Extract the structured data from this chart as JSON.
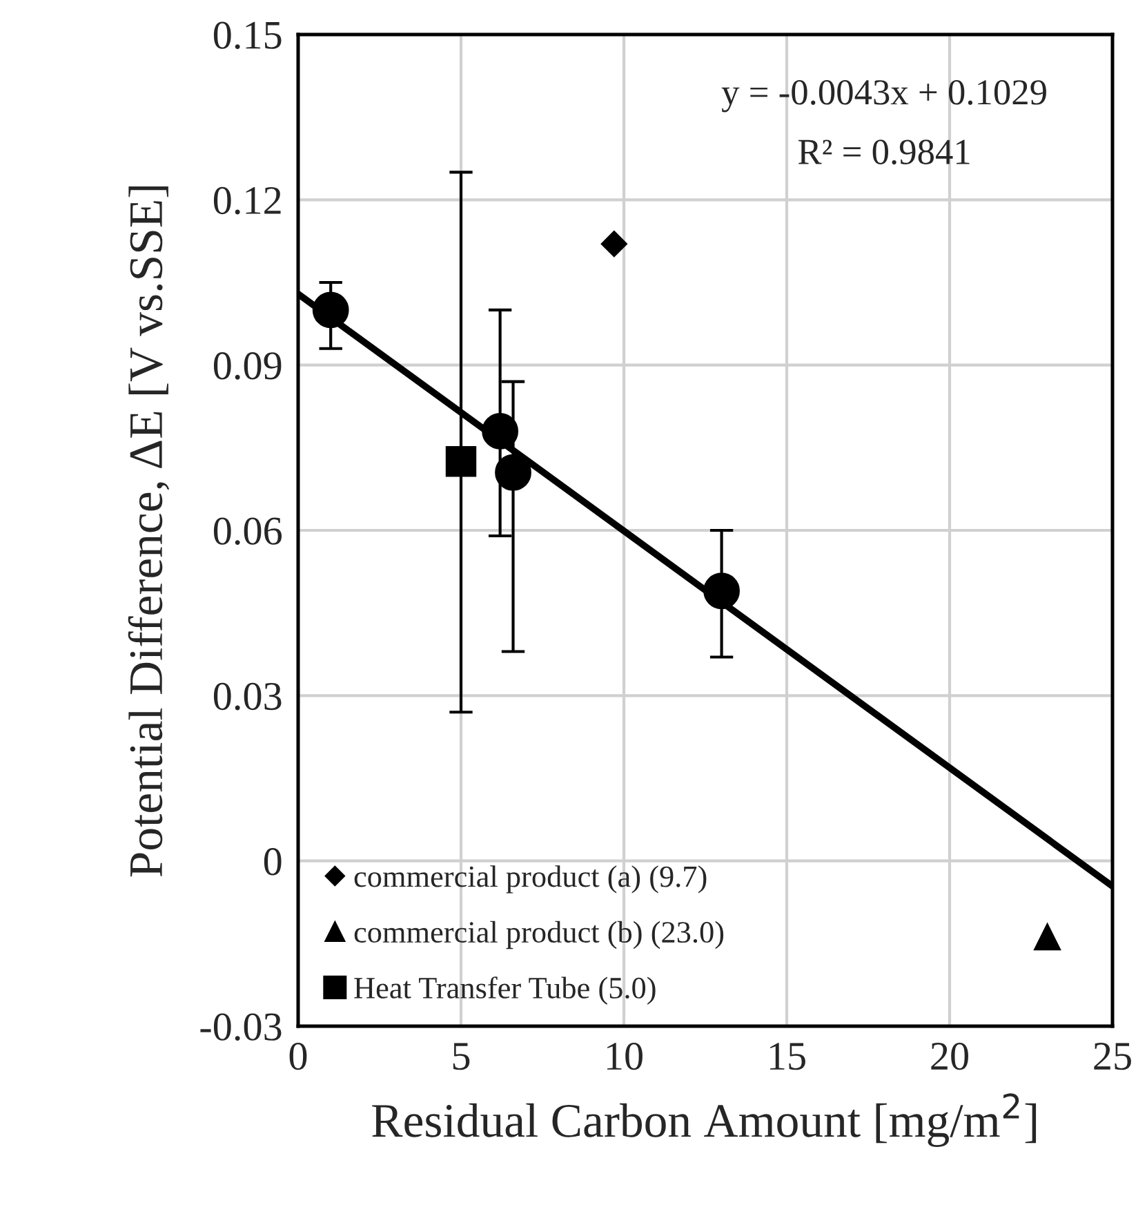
{
  "chart_data": {
    "type": "scatter",
    "xlabel": "Residual Carbon Amount [mg/m$^{2}$]",
    "ylabel": "Potential Difference, ΔE [V vs.SSE]",
    "xlim": [
      0,
      25
    ],
    "xticks": [
      0,
      5,
      10,
      15,
      20,
      25
    ],
    "ylim": [
      -0.03,
      0.15
    ],
    "yticks": [
      -0.03,
      0,
      0.03,
      0.06,
      0.09,
      0.12,
      0.15
    ],
    "grid": true,
    "legend": "bottom left",
    "annotations": [
      "y = -0.0043x + 0.1029",
      "R² = 0.9841"
    ],
    "series": [
      {
        "color": "#000000",
        "marker": "circle",
        "x": [
          1.0,
          6.2,
          6.6,
          13.0
        ],
        "values": [
          0.1,
          0.078,
          0.0705,
          0.049
        ],
        "errors": [
          [
            0.093,
            0.105
          ],
          [
            0.059,
            0.1
          ],
          [
            0.038,
            0.087
          ],
          [
            0.037,
            0.06
          ]
        ]
      },
      {
        "name": "commercial product (a) (9.7)",
        "color": "#000000",
        "marker": "diamond",
        "x": [
          9.7
        ],
        "values": [
          0.112
        ]
      },
      {
        "name": "commercial product (b) (23.0)",
        "color": "#000000",
        "marker": "triangle",
        "x": [
          23.0
        ],
        "values": [
          -0.0138
        ]
      },
      {
        "name": "Heat Transfer Tube (5.0)",
        "color": "#000000",
        "marker": "square",
        "x": [
          5.0
        ],
        "values": [
          0.0725
        ],
        "errors": [
          [
            0.027,
            0.125
          ]
        ]
      },
      {
        "type": "line",
        "color": "#000000",
        "marker": "none",
        "line_style": "solid",
        "x": [
          0,
          25
        ],
        "values": [
          0.1029,
          -0.0046
        ]
      }
    ]
  }
}
